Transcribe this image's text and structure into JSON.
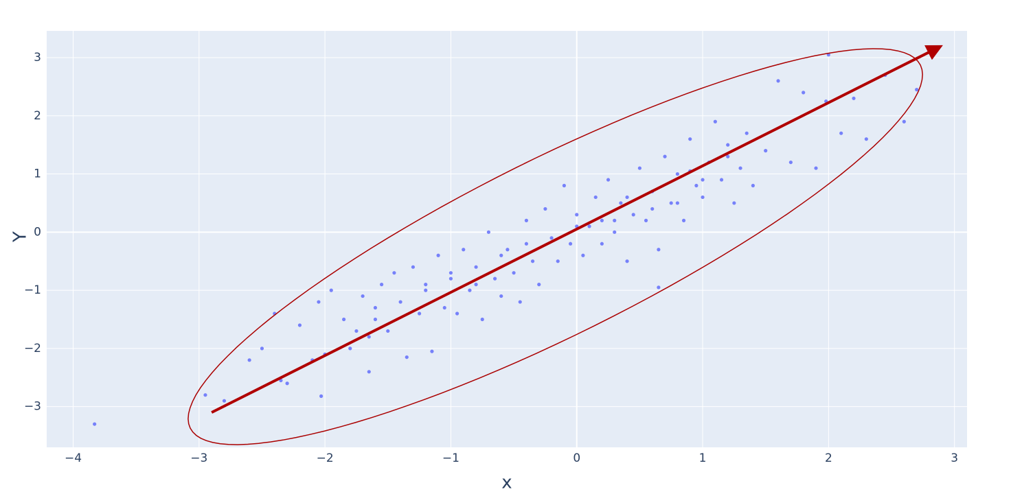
{
  "chart_data": {
    "type": "scatter",
    "x_label": "x",
    "y_label": "Y",
    "xlim": [
      -4.21,
      3.1
    ],
    "ylim": [
      -3.7,
      3.46
    ],
    "xticks": [
      {
        "value": -4,
        "label": "−4"
      },
      {
        "value": -3,
        "label": "−3"
      },
      {
        "value": -2,
        "label": "−2"
      },
      {
        "value": -1,
        "label": "−1"
      },
      0,
      1,
      2,
      3
    ],
    "yticks": [
      {
        "value": -3,
        "label": "−3"
      },
      {
        "value": -2,
        "label": "−2"
      },
      {
        "value": -1,
        "label": "−1"
      },
      0,
      1,
      2,
      3
    ],
    "grid": true,
    "background": "#e5ecf6",
    "series": [
      {
        "color": "#636efa",
        "x": [
          -2.95,
          -2.8,
          -2.6,
          -2.5,
          -2.4,
          -2.35,
          -2.2,
          -2.1,
          -2.05,
          -2.0,
          -1.95,
          -1.85,
          -1.8,
          -1.75,
          -1.7,
          -1.65,
          -1.6,
          -1.55,
          -1.5,
          -1.45,
          -1.4,
          -1.35,
          -1.3,
          -1.25,
          -1.2,
          -1.15,
          -1.1,
          -1.05,
          -1.0,
          -0.95,
          -0.9,
          -0.85,
          -0.8,
          -0.75,
          -0.7,
          -0.65,
          -0.6,
          -0.55,
          -0.5,
          -0.45,
          -0.4,
          -0.35,
          -0.3,
          -0.25,
          -0.2,
          -0.15,
          -0.1,
          -0.05,
          0.0,
          0.05,
          0.1,
          0.15,
          0.2,
          0.25,
          0.3,
          0.35,
          0.4,
          0.45,
          0.5,
          0.55,
          0.6,
          0.65,
          0.7,
          0.75,
          0.8,
          0.85,
          0.9,
          0.95,
          1.0,
          1.05,
          1.1,
          1.15,
          1.2,
          1.25,
          1.3,
          1.35,
          1.4,
          1.5,
          1.6,
          1.7,
          1.8,
          1.9,
          2.0,
          2.1,
          2.2,
          2.3,
          2.45,
          2.6,
          2.7,
          -3.83,
          -1.2,
          -0.8,
          -0.4,
          0.2,
          0.6,
          1.0,
          -1.6,
          0.4,
          0.8,
          1.2,
          -0.6,
          -1.0,
          0.0,
          0.3,
          0.9,
          1.98,
          0.65,
          -2.03,
          -1.65,
          -2.3
        ],
        "y": [
          -2.8,
          -2.9,
          -2.2,
          -2.0,
          -1.4,
          -2.55,
          -1.6,
          -2.2,
          -1.2,
          -2.1,
          -1.0,
          -1.5,
          -2.0,
          -1.7,
          -1.1,
          -2.4,
          -1.3,
          -0.9,
          -1.7,
          -0.7,
          -1.2,
          -2.15,
          -0.6,
          -1.4,
          -0.9,
          -2.05,
          -0.4,
          -1.3,
          -0.8,
          -1.4,
          -0.3,
          -1.0,
          -0.6,
          -1.5,
          0.0,
          -0.8,
          -1.1,
          -0.3,
          -0.7,
          -1.2,
          0.2,
          -0.5,
          -0.9,
          0.4,
          -0.1,
          -0.5,
          0.8,
          -0.2,
          0.3,
          -0.4,
          0.1,
          0.6,
          -0.2,
          0.9,
          0.0,
          0.5,
          -0.5,
          0.3,
          1.1,
          0.2,
          0.7,
          -0.3,
          1.3,
          0.5,
          1.0,
          0.2,
          1.6,
          0.8,
          0.6,
          1.2,
          1.9,
          0.9,
          1.5,
          0.5,
          1.1,
          1.7,
          0.8,
          1.4,
          2.6,
          1.2,
          2.4,
          1.1,
          3.05,
          1.7,
          2.3,
          1.6,
          2.7,
          1.9,
          2.45,
          -3.3,
          -1.0,
          -0.9,
          -0.2,
          0.2,
          0.4,
          0.9,
          -1.5,
          0.6,
          0.5,
          1.3,
          -0.4,
          -0.7,
          0.1,
          0.2,
          1.05,
          2.25,
          -0.95,
          -2.82,
          -1.8,
          -2.6
        ]
      }
    ],
    "arrow": {
      "color": "#b00000",
      "x": [
        -2.9,
        2.85
      ],
      "y": [
        -3.1,
        3.15
      ]
    },
    "ellipse": {
      "color": "#aa0000",
      "center": [
        -0.17,
        -0.25
      ],
      "major": [
        2.9,
        3.12
      ],
      "minor": [
        0.31,
        -1.36
      ]
    }
  }
}
